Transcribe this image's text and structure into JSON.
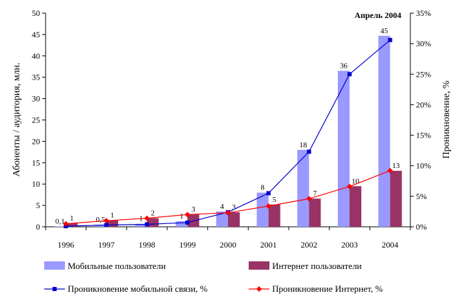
{
  "chart_data": {
    "type": "bar",
    "categories": [
      "1996",
      "1997",
      "1998",
      "1999",
      "2000",
      "2001",
      "2002",
      "2003",
      "2004"
    ],
    "ylabel_left": "Абоненты / аудитория, млн.",
    "ylabel_right": "Проникновение, %",
    "ylim_left": [
      0,
      50
    ],
    "ylim_right": [
      0,
      35
    ],
    "yticks_left": [
      "0",
      "5",
      "10",
      "15",
      "20",
      "25",
      "30",
      "35",
      "40",
      "45",
      "50"
    ],
    "yticks_right": [
      "0%",
      "5%",
      "10%",
      "15%",
      "20%",
      "25%",
      "30%",
      "35%"
    ],
    "annotation": "Апрель 2004",
    "bar_series": [
      {
        "name": "Мобильные пользователи",
        "color": "#9999ff",
        "values": [
          0.1,
          0.5,
          0.7,
          1.3,
          3.6,
          8,
          18,
          36.5,
          44.7
        ],
        "labels": [
          "0,1",
          "0,5",
          "1",
          "1",
          "4",
          "8",
          "18",
          "36",
          "45"
        ]
      },
      {
        "name": "Интернет пользователи",
        "color": "#993366",
        "values": [
          0.8,
          1.5,
          2.0,
          2.9,
          3.4,
          5.2,
          6.6,
          9.5,
          13.1
        ],
        "labels": [
          "1",
          "1",
          "2",
          "3",
          "3",
          "5",
          "7",
          "10",
          "13"
        ]
      }
    ],
    "line_series": [
      {
        "name": "Проникновение мобильной связи, %",
        "color": "#0000cc",
        "marker": "square",
        "axis": "right",
        "values": [
          0.1,
          0.3,
          0.4,
          0.7,
          2.4,
          5.5,
          12.3,
          25,
          30.6
        ]
      },
      {
        "name": "Проникновение Интернет, %",
        "color": "#ff0000",
        "marker": "diamond",
        "axis": "right",
        "values": [
          0.5,
          1.0,
          1.4,
          2.0,
          2.3,
          3.4,
          4.6,
          6.6,
          9.2
        ]
      }
    ]
  }
}
